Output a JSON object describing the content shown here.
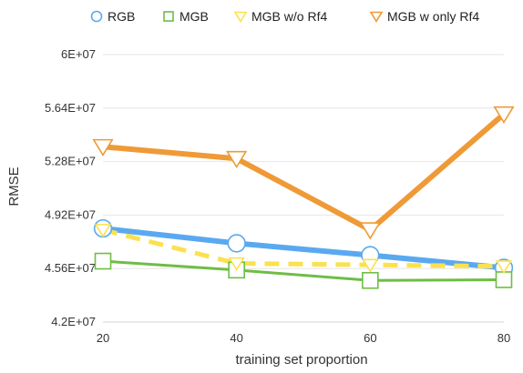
{
  "chart_data": {
    "type": "line",
    "x": [
      20,
      40,
      60,
      80
    ],
    "xlabel": "training set proportion",
    "ylabel": "RMSE",
    "ylim": [
      42000000,
      60000000
    ],
    "yticks": [
      42000000,
      45600000,
      49200000,
      52800000,
      56400000,
      60000000
    ],
    "ytick_labels": [
      "4.2E+07",
      "4.56E+07",
      "4.92E+07",
      "5.28E+07",
      "5.64E+07",
      "6E+07"
    ],
    "xtick_labels": [
      "20",
      "40",
      "60",
      "80"
    ],
    "grid": "horizontal",
    "legend_position": "top",
    "series": [
      {
        "name": "RGB",
        "color": "#5aa9f0",
        "marker": "circle",
        "dashed": false,
        "values": [
          48300000,
          47300000,
          46500000,
          45650000
        ]
      },
      {
        "name": "MGB",
        "color": "#6fbd45",
        "marker": "square",
        "dashed": false,
        "values": [
          46100000,
          45500000,
          44800000,
          44850000
        ]
      },
      {
        "name": "MGB w/o Rf4",
        "color": "#fbe14f",
        "marker": "triangle-down",
        "dashed": true,
        "values": [
          48200000,
          45950000,
          45850000,
          45750000
        ]
      },
      {
        "name": "MGB w only Rf4",
        "color": "#ef9a36",
        "marker": "triangle-down",
        "dashed": false,
        "values": [
          53800000,
          53000000,
          48200000,
          56000000
        ]
      }
    ]
  }
}
